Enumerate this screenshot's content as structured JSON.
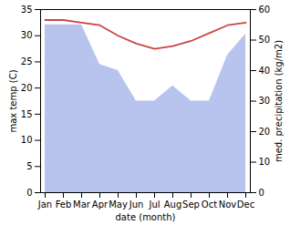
{
  "chart_data": {
    "type": "line",
    "categories": [
      "Jan",
      "Feb",
      "Mar",
      "Apr",
      "May",
      "Jun",
      "Jul",
      "Aug",
      "Sep",
      "Oct",
      "Nov",
      "Dec"
    ],
    "series": [
      {
        "type": "area",
        "axis": "y2",
        "color": "#b8c4ee",
        "values": [
          55,
          55,
          55,
          42,
          40,
          30,
          30,
          35,
          30,
          30,
          45,
          52
        ]
      },
      {
        "type": "line",
        "color": "#cc4444",
        "values": [
          33.0,
          33.0,
          32.5,
          32.0,
          30.0,
          28.5,
          27.5,
          28.0,
          29.0,
          30.5,
          32.0,
          32.5
        ]
      }
    ],
    "xlabel": "date (month)",
    "ylabel": "max temp (C)",
    "y2label": "med. precipitation (kg/m2)",
    "ylim": [
      0,
      35
    ],
    "yticks": [
      0,
      5,
      10,
      15,
      20,
      25,
      30,
      35
    ],
    "y2lim": [
      0,
      60
    ],
    "y2ticks": [
      0,
      10,
      20,
      30,
      40,
      50,
      60
    ]
  }
}
